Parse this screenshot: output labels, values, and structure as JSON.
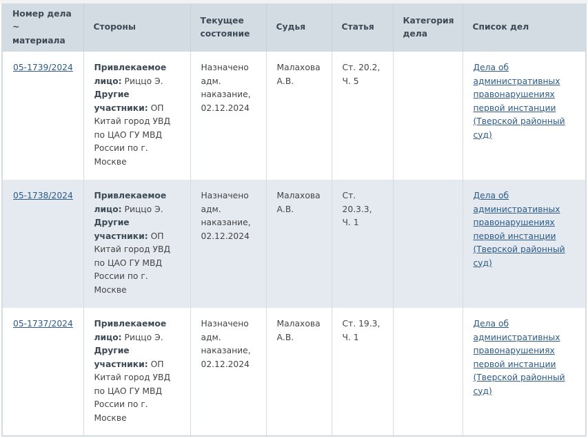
{
  "table": {
    "headers": [
      "Номер дела ~ материала",
      "Стороны",
      "Текущее состояние",
      "Судья",
      "Статья",
      "Категория дела",
      "Список дел"
    ],
    "rows": [
      {
        "case_number": "05-1739/2024",
        "party_label": "Привлекаемое лицо:",
        "party": "Риццо Э.",
        "others_label": "Другие участники:",
        "others": "ОП Китай город УВД по ЦАО ГУ МВД России по г. Москве",
        "status": "Назначено адм. наказание, 02.12.2024",
        "judge": "Малахова А.В.",
        "article": "Ст. 20.2, Ч. 5",
        "category": "",
        "list": "Дела об административных правонарушениях первой инстанции (Тверской районный суд)"
      },
      {
        "case_number": "05-1738/2024",
        "party_label": "Привлекаемое лицо:",
        "party": "Риццо Э.",
        "others_label": "Другие участники:",
        "others": "ОП Китай город УВД по ЦАО ГУ МВД России по г. Москве",
        "status": "Назначено адм. наказание, 02.12.2024",
        "judge": "Малахова А.В.",
        "article": "Ст. 20.3.3, Ч. 1",
        "category": "",
        "list": "Дела об административных правонарушениях первой инстанции (Тверской районный суд)"
      },
      {
        "case_number": "05-1737/2024",
        "party_label": "Привлекаемое лицо:",
        "party": "Риццо Э.",
        "others_label": "Другие участники:",
        "others": "ОП Китай город УВД по ЦАО ГУ МВД России по г. Москве",
        "status": "Назначено адм. наказание, 02.12.2024",
        "judge": "Малахова А.В.",
        "article": "Ст. 19.3, Ч. 1",
        "category": "",
        "list": "Дела об административных правонарушениях первой инстанции (Тверской районный суд)"
      }
    ]
  }
}
